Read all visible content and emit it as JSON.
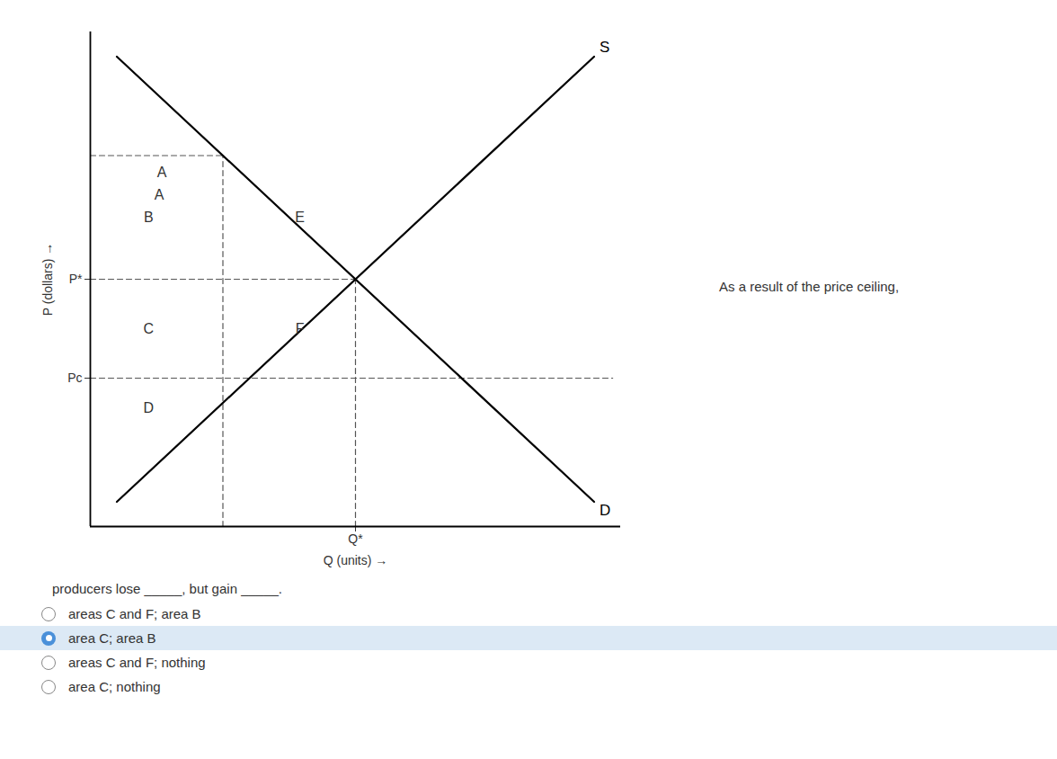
{
  "chart_data": {
    "type": "line",
    "xlabel": "Q (units)",
    "ylabel": "P (dollars)",
    "xlim": [
      0,
      10
    ],
    "ylim": [
      0,
      10
    ],
    "xticks": [
      {
        "value": 5.0,
        "label": "Q*"
      }
    ],
    "yticks": [
      {
        "value": 3.0,
        "label": "Pc"
      },
      {
        "value": 5.0,
        "label": "P*"
      }
    ],
    "grid": false,
    "x": [
      0.5,
      9.5
    ],
    "series": [
      {
        "name": "S",
        "color": "#000000",
        "values": [
          0.5,
          9.5
        ]
      },
      {
        "name": "D",
        "color": "#000000",
        "values": [
          9.5,
          0.5
        ]
      }
    ],
    "dashed_lines": {
      "color": "#555555",
      "line_style": "dashed",
      "segments": [
        {
          "x": [
            0,
            2.5
          ],
          "y": [
            7.5,
            7.5
          ]
        },
        {
          "x": [
            0,
            5.0
          ],
          "y": [
            5.0,
            5.0
          ]
        },
        {
          "x": [
            0,
            9.85
          ],
          "y": [
            3.0,
            3.0
          ]
        },
        {
          "x": [
            2.5,
            2.5
          ],
          "y": [
            0,
            7.5
          ]
        },
        {
          "x": [
            5.0,
            5.0
          ],
          "y": [
            0,
            5.0
          ]
        }
      ]
    },
    "annotations": [
      {
        "text": "A",
        "x": 1.3,
        "y": 6.7
      },
      {
        "text": "A",
        "x": 1.35,
        "y": 7.15
      },
      {
        "text": "B",
        "x": 1.1,
        "y": 6.25
      },
      {
        "text": "C",
        "x": 1.1,
        "y": 4.0
      },
      {
        "text": "D",
        "x": 1.1,
        "y": 2.4
      },
      {
        "text": "E",
        "x": 3.95,
        "y": 6.25
      },
      {
        "text": "F",
        "x": 3.95,
        "y": 4.0
      }
    ],
    "annotation_text": "As a result of the price ceiling,",
    "question_text": "producers lose _____, but gain _____.",
    "choices": [
      "areas C and F; area B",
      "area C; area B",
      "areas C and F; nothing",
      "area C; nothing"
    ],
    "selected_choice": 1,
    "selected_color": "#dce9f5"
  }
}
